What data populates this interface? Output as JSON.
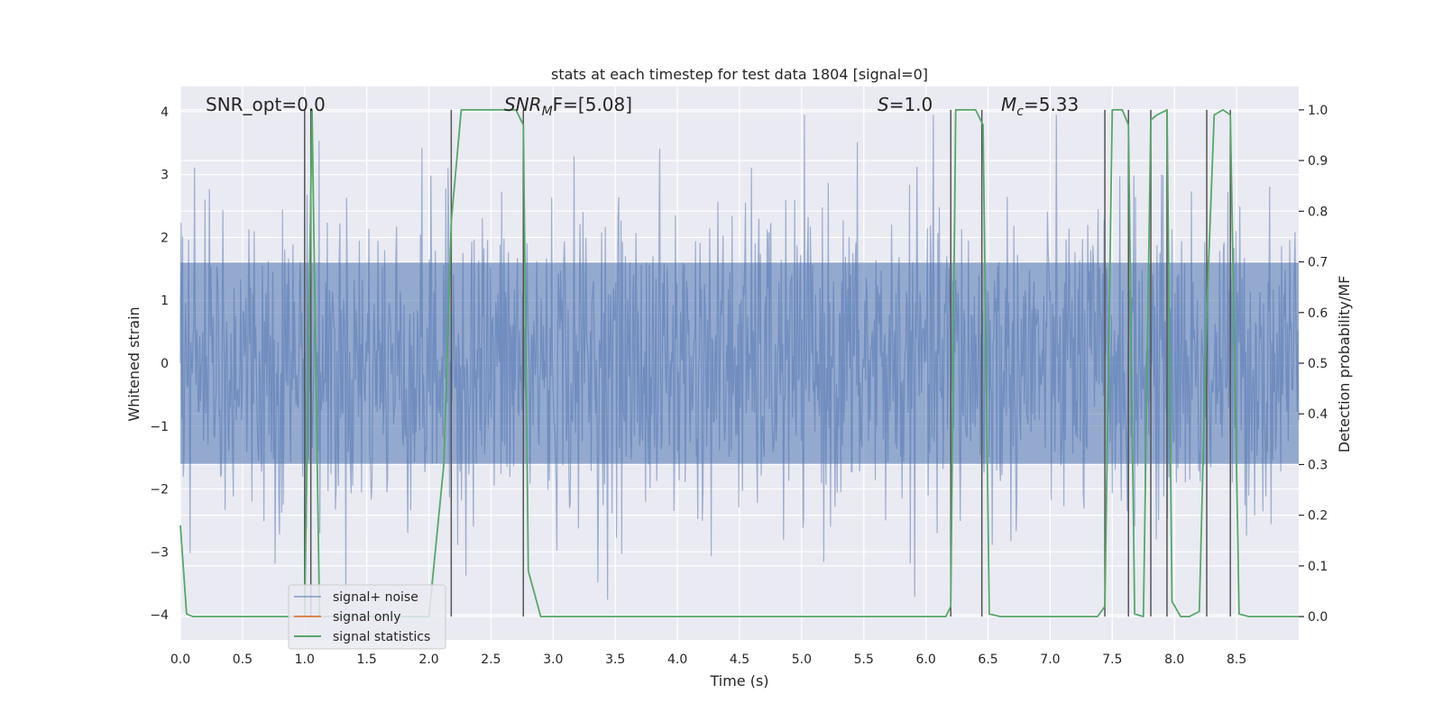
{
  "chart_data": {
    "type": "line",
    "title": "stats at each timestep for test data 1804 [signal=0]",
    "xlabel": "Time (s)",
    "ylabel": "Whitened strain",
    "y2label": "Detection probability/MF",
    "xlim": [
      0,
      9
    ],
    "ylim": [
      -4.4,
      4.4
    ],
    "y2lim": [
      -0.046,
      1.046
    ],
    "x_ticks": [
      0.0,
      0.5,
      1.0,
      1.5,
      2.0,
      2.5,
      3.0,
      3.5,
      4.0,
      4.5,
      5.0,
      5.5,
      6.0,
      6.5,
      7.0,
      7.5,
      8.0,
      8.5
    ],
    "x_tick_labels": [
      "0.0",
      "0.5",
      "1.0",
      "1.5",
      "2.0",
      "2.5",
      "3.0",
      "3.5",
      "4.0",
      "4.5",
      "5.0",
      "5.5",
      "6.0",
      "6.5",
      "7.0",
      "7.5",
      "8.0",
      "8.5"
    ],
    "y_ticks": [
      -4,
      -3,
      -2,
      -1,
      0,
      1,
      2,
      3,
      4
    ],
    "y_tick_labels": [
      "−4",
      "−3",
      "−2",
      "−1",
      "0",
      "1",
      "2",
      "3",
      "4"
    ],
    "y2_ticks": [
      0.0,
      0.1,
      0.2,
      0.3,
      0.4,
      0.5,
      0.6,
      0.7,
      0.8,
      0.9,
      1.0
    ],
    "y2_tick_labels": [
      "0.0",
      "0.1",
      "0.2",
      "0.3",
      "0.4",
      "0.5",
      "0.6",
      "0.7",
      "0.8",
      "0.9",
      "1.0"
    ],
    "grid": true,
    "annotations": {
      "snr_opt": "SNR_opt=0.0",
      "snr_mf_main": "SNR",
      "snr_mf_sub": "M",
      "snr_mf_tail": "F=[5.08]",
      "s_main": "S",
      "s_tail": "=1.0",
      "mc_main": "M",
      "mc_sub": "c",
      "mc_tail": "=5.33"
    },
    "vertical_markers": [
      1.0,
      1.05,
      2.18,
      2.76,
      6.2,
      6.45,
      7.44,
      7.63,
      7.81,
      7.94,
      8.26,
      8.45
    ],
    "noise_envelope": 1.6,
    "series": [
      {
        "name": "signal+ noise",
        "color": "#4c72b0",
        "alpha": 0.5
      },
      {
        "name": "signal only",
        "color": "#dd8452"
      },
      {
        "name": "signal statistics",
        "color": "#55a868",
        "x": [
          0.0,
          0.05,
          0.1,
          0.15,
          0.5,
          0.98,
          1.0,
          1.06,
          1.12,
          1.2,
          1.3,
          1.5,
          2.0,
          2.12,
          2.18,
          2.26,
          2.4,
          2.6,
          2.7,
          2.76,
          2.8,
          2.9,
          3.5,
          5.0,
          6.0,
          6.16,
          6.2,
          6.24,
          6.28,
          6.4,
          6.46,
          6.51,
          6.6,
          7.0,
          7.38,
          7.44,
          7.5,
          7.58,
          7.63,
          7.68,
          7.75,
          7.81,
          7.86,
          7.94,
          7.98,
          8.05,
          8.12,
          8.2,
          8.26,
          8.32,
          8.39,
          8.45,
          8.52,
          8.6,
          9.0
        ],
        "y": [
          0.18,
          0.005,
          0.0,
          0.0,
          0.0,
          0.0,
          0.0,
          1.0,
          0.0,
          0.0,
          0.0,
          0.0,
          0.0,
          0.3,
          0.78,
          1.0,
          1.0,
          1.0,
          1.0,
          0.97,
          0.09,
          0.0,
          0.0,
          0.0,
          0.0,
          0.0,
          0.02,
          1.0,
          1.0,
          1.0,
          0.97,
          0.005,
          0.0,
          0.0,
          0.0,
          0.02,
          1.0,
          1.0,
          0.97,
          0.005,
          0.0,
          0.98,
          0.99,
          1.0,
          0.03,
          0.0,
          0.0,
          0.01,
          0.6,
          0.99,
          1.0,
          0.99,
          0.005,
          0.0,
          0.0
        ]
      }
    ],
    "legend_position": "lower-left"
  }
}
